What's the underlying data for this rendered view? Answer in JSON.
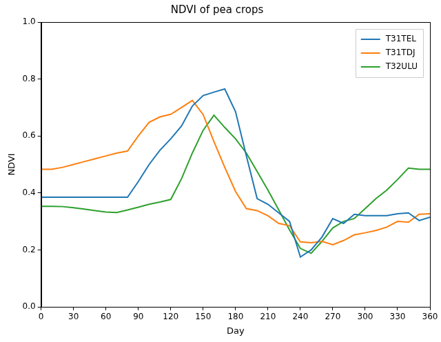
{
  "chart_data": {
    "type": "line",
    "title": "NDVI of pea crops",
    "x_label": "Day",
    "y_label": "NDVI",
    "x": [
      0,
      10,
      20,
      30,
      40,
      50,
      60,
      70,
      80,
      90,
      100,
      110,
      120,
      130,
      140,
      150,
      160,
      170,
      180,
      190,
      200,
      210,
      220,
      230,
      240,
      250,
      260,
      270,
      280,
      290,
      300,
      310,
      320,
      330,
      340,
      350,
      360
    ],
    "series": [
      {
        "name": "T31TEL",
        "color": "#1f77b4",
        "values": [
          0.385,
          0.385,
          0.385,
          0.385,
          0.385,
          0.385,
          0.385,
          0.385,
          0.385,
          0.44,
          0.5,
          0.55,
          0.59,
          0.635,
          0.705,
          0.742,
          0.754,
          0.765,
          0.685,
          0.53,
          0.38,
          0.36,
          0.33,
          0.3,
          0.175,
          0.2,
          0.245,
          0.31,
          0.293,
          0.325,
          0.32,
          0.32,
          0.32,
          0.327,
          0.33,
          0.303,
          0.315
        ]
      },
      {
        "name": "T31TDJ",
        "color": "#ff7f0e",
        "values": [
          0.483,
          0.483,
          0.49,
          0.5,
          0.51,
          0.52,
          0.53,
          0.54,
          0.547,
          0.6,
          0.648,
          0.667,
          0.676,
          0.7,
          0.725,
          0.675,
          0.58,
          0.49,
          0.405,
          0.345,
          0.338,
          0.32,
          0.293,
          0.285,
          0.228,
          0.225,
          0.23,
          0.218,
          0.233,
          0.253,
          0.26,
          0.268,
          0.28,
          0.3,
          0.297,
          0.325,
          0.327
        ]
      },
      {
        "name": "T32ULU",
        "color": "#2ca02c",
        "values": [
          0.353,
          0.353,
          0.352,
          0.348,
          0.343,
          0.338,
          0.333,
          0.331,
          0.34,
          0.35,
          0.36,
          0.368,
          0.377,
          0.45,
          0.54,
          0.62,
          0.673,
          0.63,
          0.59,
          0.54,
          0.475,
          0.41,
          0.34,
          0.27,
          0.205,
          0.188,
          0.23,
          0.277,
          0.3,
          0.31,
          0.345,
          0.38,
          0.41,
          0.447,
          0.487,
          0.483,
          0.483
        ]
      }
    ],
    "xlim": [
      0,
      360
    ],
    "xticks": [
      0,
      30,
      60,
      90,
      120,
      150,
      180,
      210,
      240,
      270,
      300,
      330,
      360
    ],
    "ylim": [
      0,
      1
    ],
    "yticks": [
      {
        "value": 0,
        "label": "0.0"
      },
      {
        "value": 0.2,
        "label": "0.2"
      },
      {
        "value": 0.4,
        "label": "0.4"
      },
      {
        "value": 0.6,
        "label": "0.6"
      },
      {
        "value": 0.8,
        "label": "0.8"
      },
      {
        "value": 1,
        "label": "1.0"
      }
    ],
    "grid": false,
    "legend": "upper right"
  }
}
